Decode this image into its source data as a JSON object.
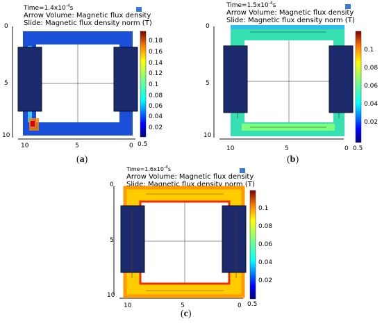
{
  "panels": [
    {
      "id": "a",
      "time_prefix": "Time=",
      "time_value": "1.4x10",
      "time_exp": "-4",
      "time_unit": "s",
      "line1": "Arrow Volume: Magnetic flux density",
      "line2": "Slide: Magnetic flux density norm (T)",
      "caption": "a",
      "axis_left_ticks": [
        "0",
        "5",
        "10"
      ],
      "axis_bottom_ticks": [
        "10",
        "5",
        "0"
      ],
      "colorbar_ticks": [
        "0.18",
        "0.16",
        "0.14",
        "0.12",
        "0.1",
        "0.08",
        "0.06",
        "0.04",
        "0.02"
      ],
      "colorbar_min": "0.5"
    },
    {
      "id": "b",
      "time_prefix": "Time=",
      "time_value": "1.5x10",
      "time_exp": "-4",
      "time_unit": "s",
      "line1": "Arrow Volume: Magnetic flux density",
      "line2": "Slide: Magnetic flux density norm (T)",
      "caption": "b",
      "axis_left_ticks": [
        "0",
        "5",
        "10"
      ],
      "axis_bottom_ticks": [
        "10",
        "5",
        "0"
      ],
      "colorbar_ticks": [
        "0.1",
        "0.08",
        "0.06",
        "0.04",
        "0.02"
      ],
      "colorbar_min": "0.5"
    },
    {
      "id": "c",
      "time_prefix": "Time=",
      "time_value": "1.6x10",
      "time_exp": "-4",
      "time_unit": "s",
      "line1": "Arrow Volume: Magnetic flux density",
      "line2": "Slide: Magnetic flux density norm (T)",
      "caption": "c",
      "axis_left_ticks": [
        "0",
        "5",
        "10"
      ],
      "axis_bottom_ticks": [
        "10",
        "5",
        "0"
      ],
      "colorbar_ticks": [
        "0.1",
        "0.08",
        "0.06",
        "0.04",
        "0.02"
      ],
      "colorbar_min": "0.5"
    }
  ],
  "colors": {
    "coil": "#1a2a6c",
    "colormap": [
      "#00007f",
      "#0000ff",
      "#007fff",
      "#00ffff",
      "#7fff7f",
      "#ffff00",
      "#ff7f00",
      "#ff0000",
      "#7f0000"
    ]
  }
}
